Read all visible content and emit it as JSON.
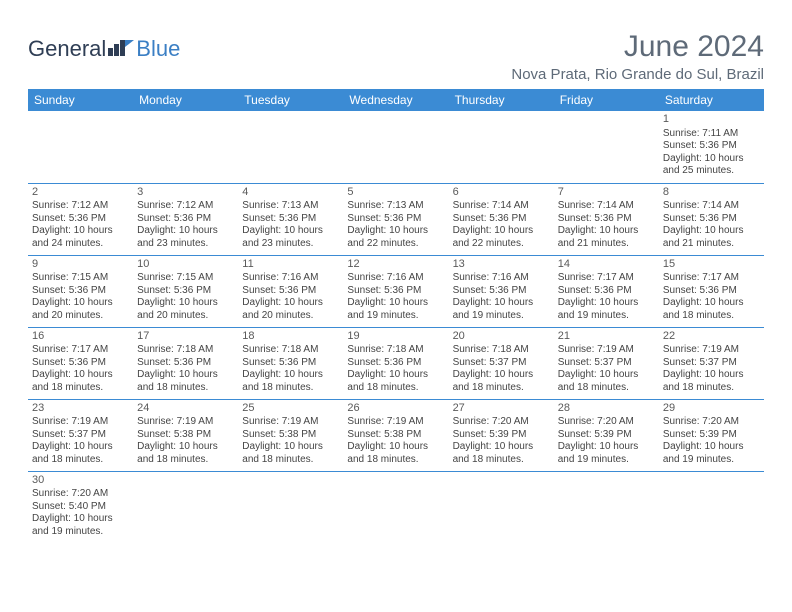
{
  "brand": {
    "part1": "General",
    "part2": "Blue"
  },
  "title": "June 2024",
  "location": "Nova Prata, Rio Grande do Sul, Brazil",
  "colors": {
    "header_bg": "#3b8bd4",
    "header_text": "#ffffff",
    "rule": "#3b8bd4",
    "title_text": "#5e6a78",
    "body_text": "#444444",
    "background": "#ffffff",
    "logo_text": "#2f3e55",
    "logo_accent": "#3b7fc4"
  },
  "typography": {
    "title_pt": 30,
    "location_pt": 15,
    "dow_pt": 12,
    "daynum_pt": 11,
    "body_pt": 10,
    "font_family": "Arial"
  },
  "days_of_week": [
    "Sunday",
    "Monday",
    "Tuesday",
    "Wednesday",
    "Thursday",
    "Friday",
    "Saturday"
  ],
  "labels": {
    "sunrise": "Sunrise:",
    "sunset": "Sunset:",
    "daylight": "Daylight:"
  },
  "weeks": [
    [
      null,
      null,
      null,
      null,
      null,
      null,
      {
        "n": "1",
        "rise": "7:11 AM",
        "set": "5:36 PM",
        "dl": "10 hours and 25 minutes."
      }
    ],
    [
      {
        "n": "2",
        "rise": "7:12 AM",
        "set": "5:36 PM",
        "dl": "10 hours and 24 minutes."
      },
      {
        "n": "3",
        "rise": "7:12 AM",
        "set": "5:36 PM",
        "dl": "10 hours and 23 minutes."
      },
      {
        "n": "4",
        "rise": "7:13 AM",
        "set": "5:36 PM",
        "dl": "10 hours and 23 minutes."
      },
      {
        "n": "5",
        "rise": "7:13 AM",
        "set": "5:36 PM",
        "dl": "10 hours and 22 minutes."
      },
      {
        "n": "6",
        "rise": "7:14 AM",
        "set": "5:36 PM",
        "dl": "10 hours and 22 minutes."
      },
      {
        "n": "7",
        "rise": "7:14 AM",
        "set": "5:36 PM",
        "dl": "10 hours and 21 minutes."
      },
      {
        "n": "8",
        "rise": "7:14 AM",
        "set": "5:36 PM",
        "dl": "10 hours and 21 minutes."
      }
    ],
    [
      {
        "n": "9",
        "rise": "7:15 AM",
        "set": "5:36 PM",
        "dl": "10 hours and 20 minutes."
      },
      {
        "n": "10",
        "rise": "7:15 AM",
        "set": "5:36 PM",
        "dl": "10 hours and 20 minutes."
      },
      {
        "n": "11",
        "rise": "7:16 AM",
        "set": "5:36 PM",
        "dl": "10 hours and 20 minutes."
      },
      {
        "n": "12",
        "rise": "7:16 AM",
        "set": "5:36 PM",
        "dl": "10 hours and 19 minutes."
      },
      {
        "n": "13",
        "rise": "7:16 AM",
        "set": "5:36 PM",
        "dl": "10 hours and 19 minutes."
      },
      {
        "n": "14",
        "rise": "7:17 AM",
        "set": "5:36 PM",
        "dl": "10 hours and 19 minutes."
      },
      {
        "n": "15",
        "rise": "7:17 AM",
        "set": "5:36 PM",
        "dl": "10 hours and 18 minutes."
      }
    ],
    [
      {
        "n": "16",
        "rise": "7:17 AM",
        "set": "5:36 PM",
        "dl": "10 hours and 18 minutes."
      },
      {
        "n": "17",
        "rise": "7:18 AM",
        "set": "5:36 PM",
        "dl": "10 hours and 18 minutes."
      },
      {
        "n": "18",
        "rise": "7:18 AM",
        "set": "5:36 PM",
        "dl": "10 hours and 18 minutes."
      },
      {
        "n": "19",
        "rise": "7:18 AM",
        "set": "5:36 PM",
        "dl": "10 hours and 18 minutes."
      },
      {
        "n": "20",
        "rise": "7:18 AM",
        "set": "5:37 PM",
        "dl": "10 hours and 18 minutes."
      },
      {
        "n": "21",
        "rise": "7:19 AM",
        "set": "5:37 PM",
        "dl": "10 hours and 18 minutes."
      },
      {
        "n": "22",
        "rise": "7:19 AM",
        "set": "5:37 PM",
        "dl": "10 hours and 18 minutes."
      }
    ],
    [
      {
        "n": "23",
        "rise": "7:19 AM",
        "set": "5:37 PM",
        "dl": "10 hours and 18 minutes."
      },
      {
        "n": "24",
        "rise": "7:19 AM",
        "set": "5:38 PM",
        "dl": "10 hours and 18 minutes."
      },
      {
        "n": "25",
        "rise": "7:19 AM",
        "set": "5:38 PM",
        "dl": "10 hours and 18 minutes."
      },
      {
        "n": "26",
        "rise": "7:19 AM",
        "set": "5:38 PM",
        "dl": "10 hours and 18 minutes."
      },
      {
        "n": "27",
        "rise": "7:20 AM",
        "set": "5:39 PM",
        "dl": "10 hours and 18 minutes."
      },
      {
        "n": "28",
        "rise": "7:20 AM",
        "set": "5:39 PM",
        "dl": "10 hours and 19 minutes."
      },
      {
        "n": "29",
        "rise": "7:20 AM",
        "set": "5:39 PM",
        "dl": "10 hours and 19 minutes."
      }
    ],
    [
      {
        "n": "30",
        "rise": "7:20 AM",
        "set": "5:40 PM",
        "dl": "10 hours and 19 minutes."
      },
      null,
      null,
      null,
      null,
      null,
      null
    ]
  ]
}
